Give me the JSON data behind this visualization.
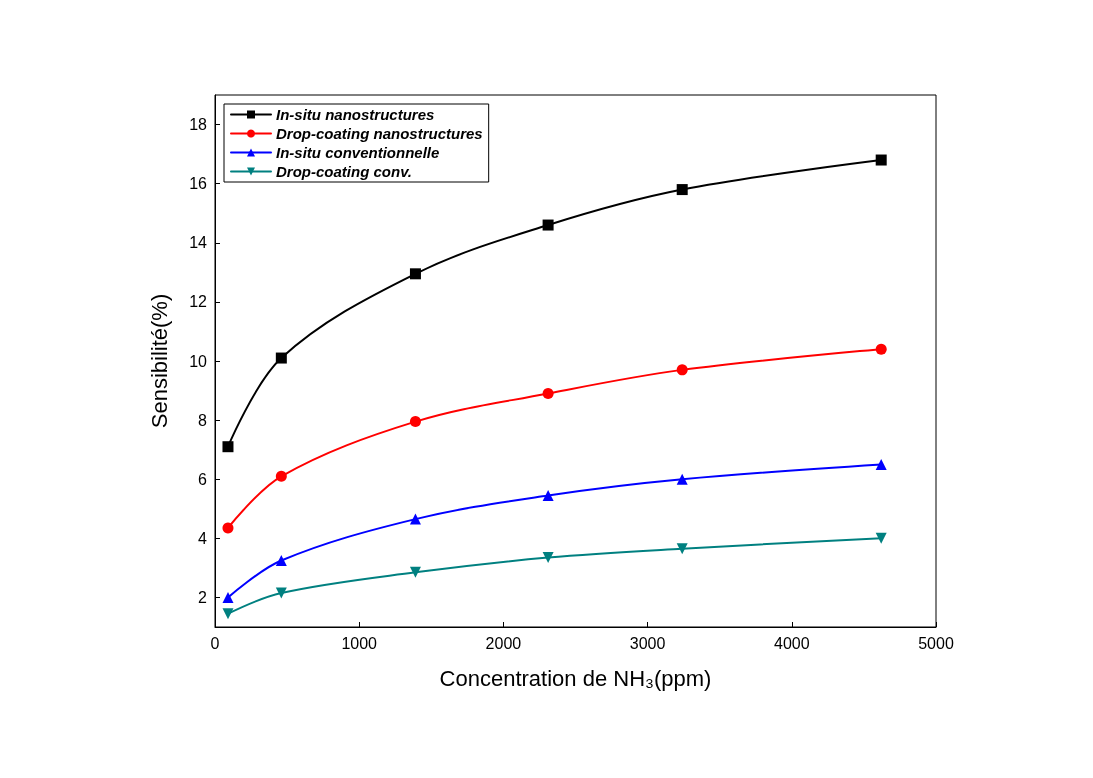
{
  "chart_data": {
    "type": "line",
    "xlabel": "Concentration de NH₃(ppm)",
    "ylabel": "Sensibilité(%)",
    "x": [
      90,
      460,
      1390,
      2310,
      3240,
      4620
    ],
    "series": [
      {
        "name": "In-situ nanostructures",
        "color": "#000000",
        "marker": "square",
        "values": [
          7.1,
          10.1,
          12.95,
          14.6,
          15.8,
          16.8
        ]
      },
      {
        "name": "Drop-coating nanostructures",
        "color": "#ff0000",
        "marker": "circle",
        "values": [
          4.35,
          6.1,
          7.95,
          8.9,
          9.7,
          10.4
        ]
      },
      {
        "name": "In-situ conventionnelle",
        "color": "#0000ff",
        "marker": "triangle",
        "values": [
          2.0,
          3.25,
          4.65,
          5.45,
          6.0,
          6.5
        ]
      },
      {
        "name": "Drop-coating conv.",
        "color": "#008080",
        "marker": "triangle-down",
        "values": [
          1.45,
          2.15,
          2.85,
          3.35,
          3.65,
          4.0
        ]
      }
    ],
    "xlim": [
      0,
      5000
    ],
    "xticks": [
      0,
      1000,
      2000,
      3000,
      4000,
      5000
    ],
    "ylim": [
      1,
      19
    ],
    "yticks": [
      2,
      4,
      6,
      8,
      10,
      12,
      14,
      16,
      18
    ],
    "grid": false,
    "legend": "top left",
    "line_style": "solid"
  }
}
